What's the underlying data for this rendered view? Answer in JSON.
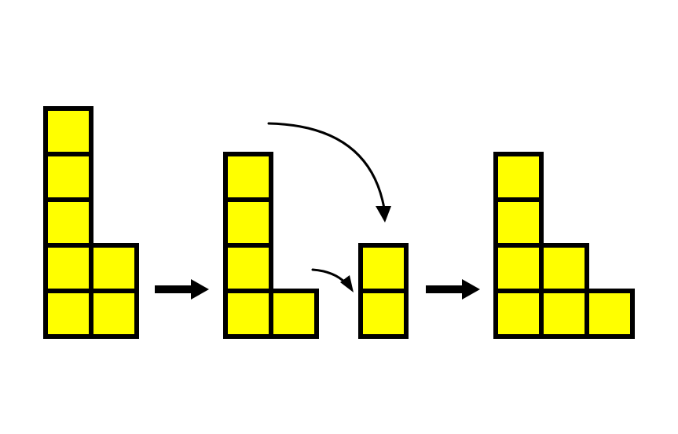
{
  "colors": {
    "cell_fill": "#ffff00",
    "outline": "#000000",
    "background": "#ffffff"
  },
  "figures": [
    {
      "name": "initial-shape",
      "rows_bottom_up": [
        2,
        2,
        1,
        1,
        1
      ]
    },
    {
      "name": "shape-after-removal",
      "rows_bottom_up": [
        2,
        1,
        1,
        1
      ]
    },
    {
      "name": "removed-column",
      "rows_bottom_up": [
        1,
        1
      ]
    },
    {
      "name": "final-shape",
      "rows_bottom_up": [
        3,
        2,
        1,
        1
      ]
    }
  ],
  "arrows": [
    {
      "type": "block-arrow",
      "from": "initial-shape",
      "to": "shape-after-removal"
    },
    {
      "type": "curved-arrow",
      "from": "shape-after-removal",
      "to": "removed-column"
    },
    {
      "type": "curved-arrow",
      "from": "shape-after-removal",
      "to": "removed-column"
    },
    {
      "type": "block-arrow",
      "from": "removed-column",
      "to": "final-shape"
    }
  ]
}
